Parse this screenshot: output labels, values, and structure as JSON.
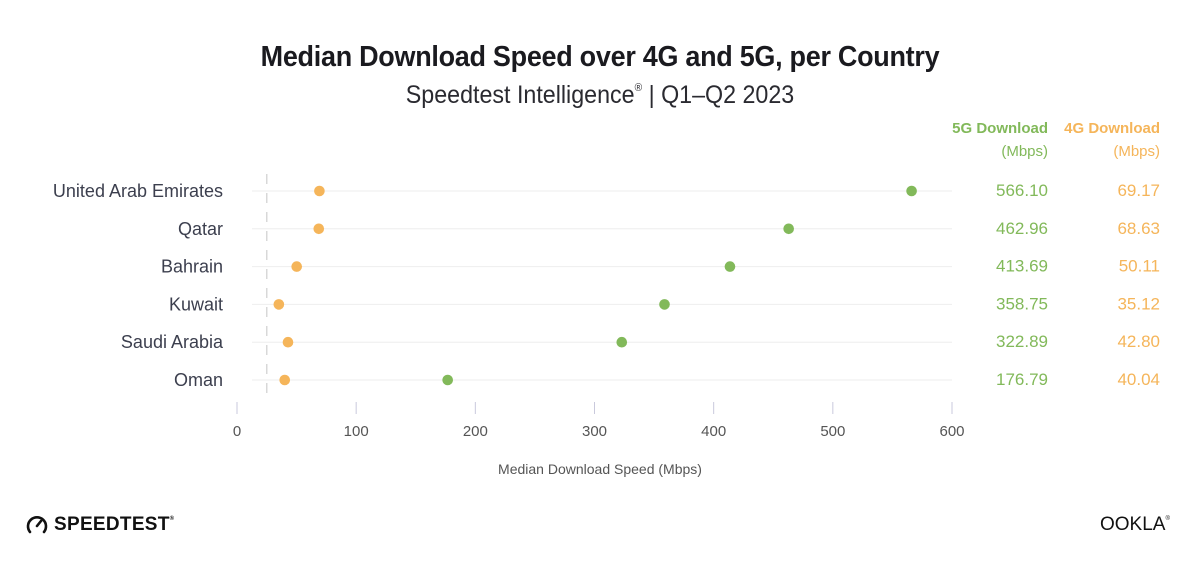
{
  "header": {
    "title": "Median Download Speed over 4G and 5G, per Country",
    "subtitle_main": "Speedtest Intelligence",
    "subtitle_reg": "®",
    "subtitle_period": " | Q1–Q2 2023"
  },
  "colors": {
    "g5": "#82b95a",
    "g4": "#f5b55a",
    "grid": "#eeeeee",
    "ref_line": "#cfcfcf",
    "tick": "#c9c9dc"
  },
  "columns": {
    "g5_head": "5G Download",
    "g5_unit": "(Mbps)",
    "g4_head": "4G Download",
    "g4_unit": "(Mbps)"
  },
  "chart_data": {
    "type": "scatter",
    "title": "Median Download Speed over 4G and 5G, per Country",
    "subtitle": "Speedtest Intelligence® | Q1–Q2 2023",
    "xlabel": "Median Download Speed (Mbps)",
    "ylabel": "",
    "xlim": [
      0,
      600
    ],
    "xticks": [
      0,
      100,
      200,
      300,
      400,
      500,
      600
    ],
    "reference_line_x": 25,
    "grid": true,
    "categories": [
      "United Arab Emirates",
      "Qatar",
      "Bahrain",
      "Kuwait",
      "Saudi Arabia",
      "Oman"
    ],
    "series": [
      {
        "name": "5G Download (Mbps)",
        "values": [
          566.1,
          462.96,
          413.69,
          358.75,
          322.89,
          176.79
        ],
        "labels": [
          "566.10",
          "462.96",
          "413.69",
          "358.75",
          "322.89",
          "176.79"
        ]
      },
      {
        "name": "4G Download (Mbps)",
        "values": [
          69.17,
          68.63,
          50.11,
          35.12,
          42.8,
          40.04
        ],
        "labels": [
          "69.17",
          "68.63",
          "50.11",
          "35.12",
          "42.80",
          "40.04"
        ]
      }
    ]
  },
  "footer": {
    "brand_left": "SPEEDTEST",
    "brand_left_reg": "®",
    "brand_right": "OOKLA",
    "brand_right_reg": "®"
  }
}
